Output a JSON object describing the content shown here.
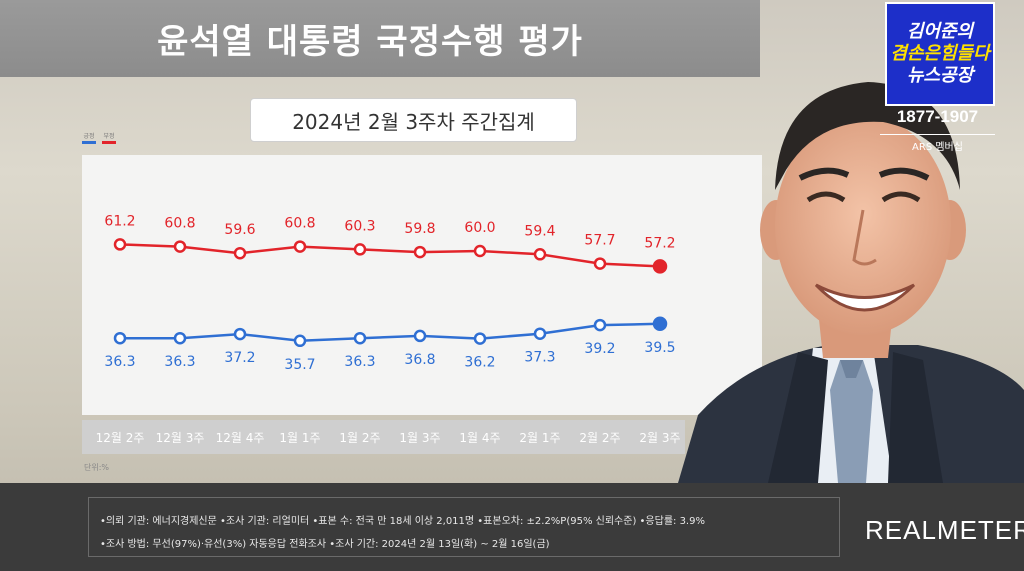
{
  "title": "윤석열 대통령 국정수행 평가",
  "subtitle": "2024년 2월 3주차 주간집계",
  "legend": [
    {
      "name": "긍정",
      "color": "#2f6fd3"
    },
    {
      "name": "부정",
      "color": "#e2242a"
    }
  ],
  "unit": "단위:%",
  "chart_data": {
    "type": "line",
    "categories": [
      "12월 2주",
      "12월 3주",
      "12월 4주",
      "1월 1주",
      "1월 2주",
      "1월 3주",
      "1월 4주",
      "2월 1주",
      "2월 2주",
      "2월 3주"
    ],
    "series": [
      {
        "name": "부정",
        "color": "#e2242a",
        "values": [
          61.2,
          60.8,
          59.6,
          60.8,
          60.3,
          59.8,
          60.0,
          59.4,
          57.7,
          57.2
        ]
      },
      {
        "name": "긍정",
        "color": "#2f6fd3",
        "values": [
          36.3,
          36.3,
          37.2,
          35.7,
          36.3,
          36.8,
          36.2,
          37.3,
          39.2,
          39.5
        ]
      }
    ],
    "title": "윤석열 대통령 국정수행 평가",
    "subtitle": "2024년 2월 3주차 주간집계",
    "ylabel": "단위:%",
    "grid": false,
    "legend_position": "top-left"
  },
  "footer": {
    "line1": "•의뢰 기관: 에너지경제신문 •조사 기관: 리얼미터 •표본 수: 전국 만 18세 이상 2,011명 •표본오차: ±2.2%P(95% 신뢰수준) •응답률: 3.9%",
    "line2": "•조사 방법: 무선(97%)·유선(3%) 자동응답 전화조사 •조사 기간: 2024년 2월 13일(화) ~ 2월 16일(금)",
    "brand": "REALMETER"
  },
  "badge": {
    "line1": "김어준의",
    "line2": "겸손은힘들다",
    "line3": "뉴스공장",
    "phone": "1877-1907",
    "ars": "ARS 멤버십",
    "bg_color": "#1d2fc9"
  }
}
